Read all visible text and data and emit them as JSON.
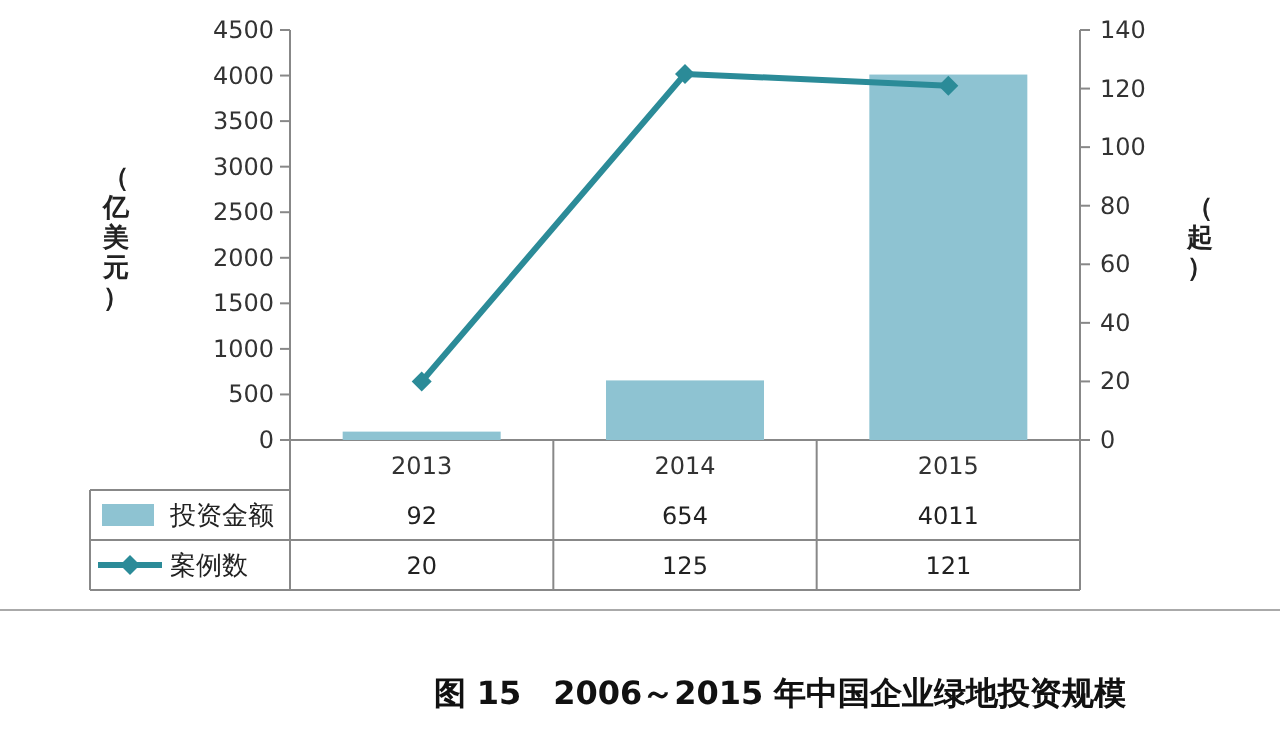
{
  "chart_data": {
    "type": "bar",
    "title": "图 15　2006～2015 年中国企业绿地投资规模",
    "ylabel": "（亿美元）",
    "y2label": "（起）",
    "categories": [
      "2013",
      "2014",
      "2015"
    ],
    "series": [
      {
        "name": "投资金额",
        "color": "#8ec3d2",
        "values": [
          92,
          654,
          4011
        ]
      },
      {
        "name": "案例数",
        "type": "line",
        "axis": "y2",
        "marker": "diamond",
        "color": "#2b8b98",
        "values": [
          20,
          125,
          121
        ]
      }
    ],
    "ylim": [
      0,
      4500
    ],
    "yticks": [
      0,
      500,
      1000,
      1500,
      2000,
      2500,
      3000,
      3500,
      4000,
      4500
    ],
    "y2lim": [
      0,
      140
    ],
    "y2ticks": [
      0,
      20,
      40,
      60,
      80,
      100,
      120,
      140
    ],
    "data_labels": true,
    "legend": "bottom"
  }
}
